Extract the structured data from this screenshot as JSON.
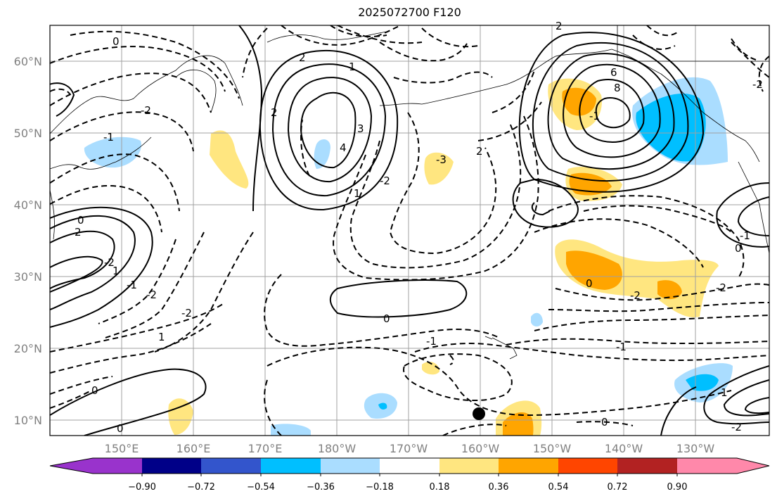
{
  "title": "2025072700 F120",
  "lat_labels": [
    "60°N",
    "50°N",
    "40°N",
    "30°N",
    "20°N",
    "10°N"
  ],
  "lon_labels": [
    "150°E",
    "160°E",
    "170°E",
    "180°W",
    "170°W",
    "160°W",
    "150°W",
    "140°W",
    "130°W"
  ],
  "colorbar": {
    "ticks": [
      "−0.90",
      "−0.72",
      "−0.54",
      "−0.36",
      "−0.18",
      "0.18",
      "0.36",
      "0.54",
      "0.72",
      "0.90"
    ],
    "colors": [
      "#9933cc",
      "#000088",
      "#3355cc",
      "#00bfff",
      "#aaddff",
      "#ffffff",
      "#ffe680",
      "#ffa500",
      "#ff4500",
      "#b22222",
      "#ff88aa"
    ]
  },
  "contour_labels": [
    "0",
    "2",
    "-2",
    "1",
    "-1",
    "2",
    "3",
    "4",
    "6",
    "8",
    "-1",
    "0",
    "2",
    "-2",
    "1",
    "-1",
    "0",
    "-2",
    "0",
    "1",
    "-2",
    "-1",
    "0",
    "-2",
    "0",
    "-2",
    "-1",
    "0",
    "-1",
    "-2",
    "1",
    "2",
    "-2",
    "0",
    "1",
    "-2",
    "2",
    "-3"
  ],
  "station_marker": "black-dot"
}
